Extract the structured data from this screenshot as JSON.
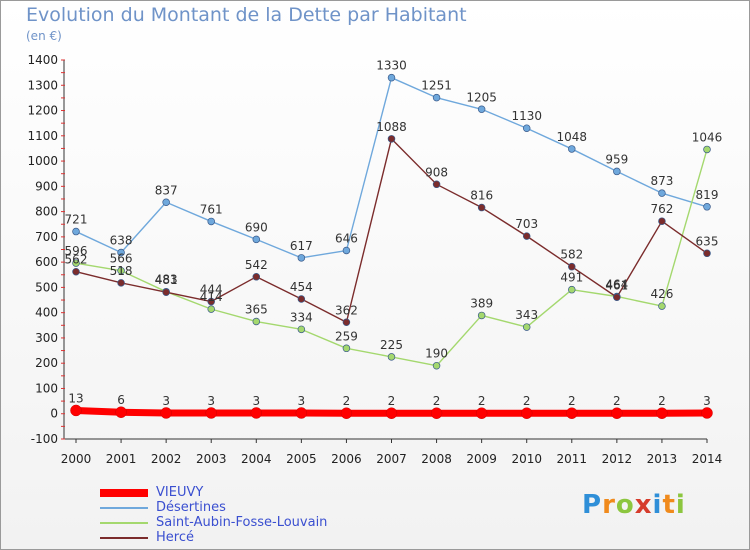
{
  "title": "Evolution du Montant de la Dette par Habitant",
  "unit_label": "(en €)",
  "logo": {
    "letters": [
      "P",
      "r",
      "o",
      "x",
      "i",
      "t",
      "i"
    ],
    "colors": [
      "#2f8fd8",
      "#f08a1c",
      "#8cc63f",
      "#d63c2c",
      "#2f8fd8",
      "#f08a1c",
      "#8cc63f"
    ]
  },
  "chart_data": {
    "type": "line",
    "title": "Evolution du Montant de la Dette par Habitant",
    "ylabel": "(en €)",
    "x": [
      "2000",
      "2001",
      "2002",
      "2003",
      "2004",
      "2005",
      "2006",
      "2007",
      "2008",
      "2009",
      "2010",
      "2011",
      "2012",
      "2013",
      "2014"
    ],
    "ylim": [
      -100,
      1400
    ],
    "yticks": [
      -100,
      0,
      100,
      200,
      300,
      400,
      500,
      600,
      700,
      800,
      900,
      1000,
      1100,
      1200,
      1300,
      1400
    ],
    "grid": false,
    "legend_position": "bottom-left",
    "series": [
      {
        "name": "VIEUVY",
        "color": "#ff0000",
        "values": [
          13,
          6,
          3,
          3,
          3,
          3,
          2,
          2,
          2,
          2,
          2,
          2,
          2,
          2,
          3
        ]
      },
      {
        "name": "Désertines",
        "color": "#6fa8dc",
        "values": [
          721,
          638,
          837,
          761,
          690,
          617,
          646,
          1330,
          1251,
          1205,
          1130,
          1048,
          959,
          873,
          819
        ]
      },
      {
        "name": "Saint-Aubin-Fosse-Louvain",
        "color": "#a4d86e",
        "values": [
          596,
          566,
          483,
          414,
          365,
          334,
          259,
          225,
          190,
          389,
          343,
          491,
          464,
          426,
          1046
        ]
      },
      {
        "name": "Hercé",
        "color": "#7b2c2c",
        "values": [
          562,
          518,
          481,
          444,
          542,
          454,
          362,
          1088,
          908,
          816,
          703,
          582,
          461,
          762,
          635
        ]
      }
    ]
  }
}
